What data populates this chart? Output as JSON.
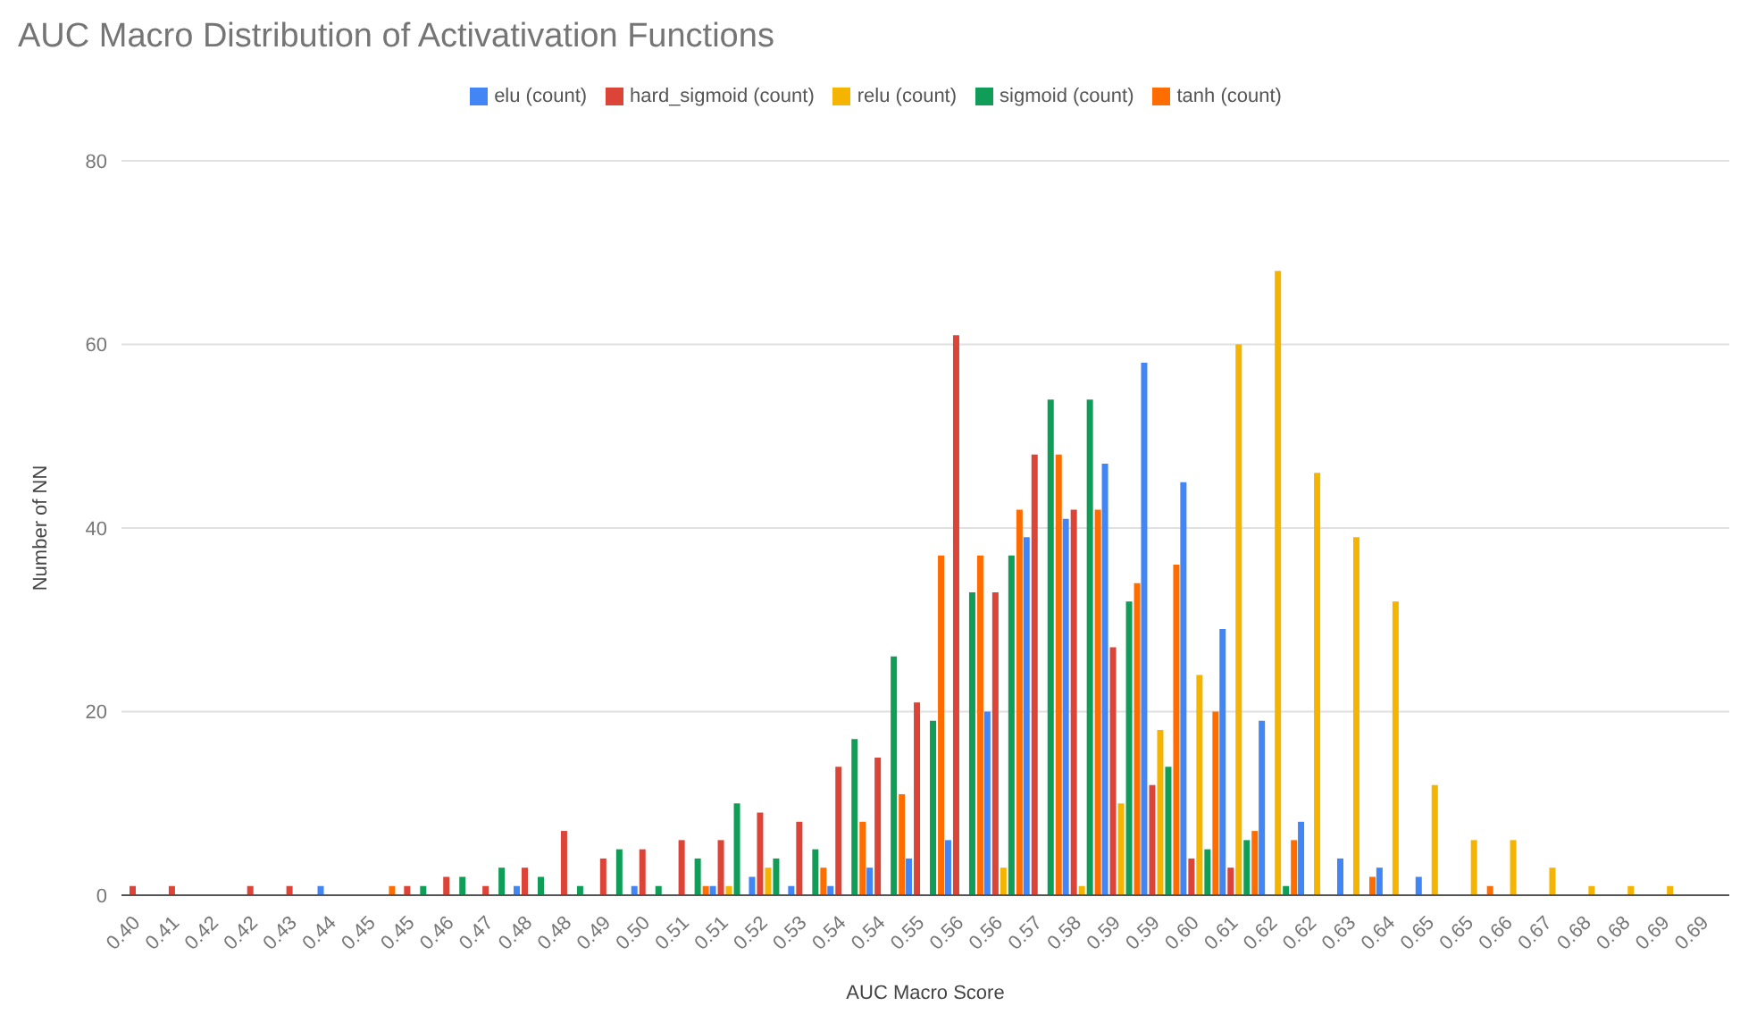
{
  "chart_data": {
    "type": "bar",
    "title": "AUC Macro Distribution of Activativation Functions",
    "xlabel": "AUC Macro Score",
    "ylabel": "Number of NN",
    "categories": [
      "0.40",
      "0.41",
      "0.42",
      "0.42",
      "0.43",
      "0.44",
      "0.45",
      "0.45",
      "0.46",
      "0.47",
      "0.48",
      "0.48",
      "0.49",
      "0.50",
      "0.51",
      "0.51",
      "0.52",
      "0.53",
      "0.54",
      "0.54",
      "0.55",
      "0.56",
      "0.56",
      "0.57",
      "0.58",
      "0.59",
      "0.59",
      "0.60",
      "0.61",
      "0.62",
      "0.62",
      "0.63",
      "0.64",
      "0.65",
      "0.65",
      "0.66",
      "0.67",
      "0.68",
      "0.68",
      "0.69",
      "0.69"
    ],
    "series": [
      {
        "name": "elu (count)",
        "color": "#4285f4",
        "values": [
          0,
          0,
          0,
          0,
          0,
          1,
          0,
          0,
          0,
          0,
          1,
          0,
          0,
          1,
          0,
          1,
          2,
          1,
          1,
          3,
          4,
          6,
          20,
          39,
          41,
          47,
          58,
          45,
          29,
          19,
          8,
          4,
          3,
          2,
          0,
          0,
          0,
          0,
          0,
          0,
          null
        ]
      },
      {
        "name": "hard_sigmoid (count)",
        "color": "#db4437",
        "values": [
          1,
          1,
          0,
          1,
          1,
          0,
          0,
          1,
          2,
          1,
          3,
          7,
          4,
          5,
          6,
          6,
          9,
          8,
          14,
          15,
          21,
          61,
          33,
          48,
          42,
          27,
          12,
          4,
          3,
          0,
          0,
          0,
          0,
          0,
          0,
          0,
          0,
          0,
          0,
          0,
          null
        ]
      },
      {
        "name": "relu (count)",
        "color": "#f4b400",
        "values": [
          0,
          0,
          0,
          0,
          0,
          0,
          0,
          0,
          0,
          0,
          0,
          0,
          0,
          0,
          0,
          1,
          3,
          0,
          0,
          0,
          0,
          0,
          3,
          0,
          1,
          10,
          18,
          24,
          60,
          68,
          46,
          39,
          32,
          12,
          6,
          6,
          3,
          1,
          1,
          1,
          null
        ]
      },
      {
        "name": "sigmoid (count)",
        "color": "#0f9d58",
        "values": [
          0,
          0,
          0,
          0,
          0,
          0,
          0,
          1,
          2,
          3,
          2,
          1,
          5,
          1,
          4,
          10,
          4,
          5,
          17,
          26,
          19,
          33,
          37,
          54,
          54,
          32,
          14,
          5,
          6,
          1,
          0,
          0,
          0,
          0,
          0,
          0,
          0,
          0,
          0,
          0,
          null
        ]
      },
      {
        "name": "tanh (count)",
        "color": "#ff6d01",
        "values": [
          0,
          0,
          0,
          0,
          0,
          0,
          1,
          0,
          0,
          0,
          0,
          0,
          0,
          0,
          1,
          0,
          0,
          3,
          8,
          11,
          37,
          37,
          42,
          48,
          42,
          34,
          36,
          20,
          7,
          6,
          0,
          2,
          0,
          0,
          1,
          0,
          0,
          0,
          0,
          0,
          null
        ]
      }
    ],
    "ylim": [
      0,
      80
    ],
    "yticks": [
      0,
      20,
      40,
      60,
      80
    ],
    "grid": "y",
    "legend": "top"
  }
}
